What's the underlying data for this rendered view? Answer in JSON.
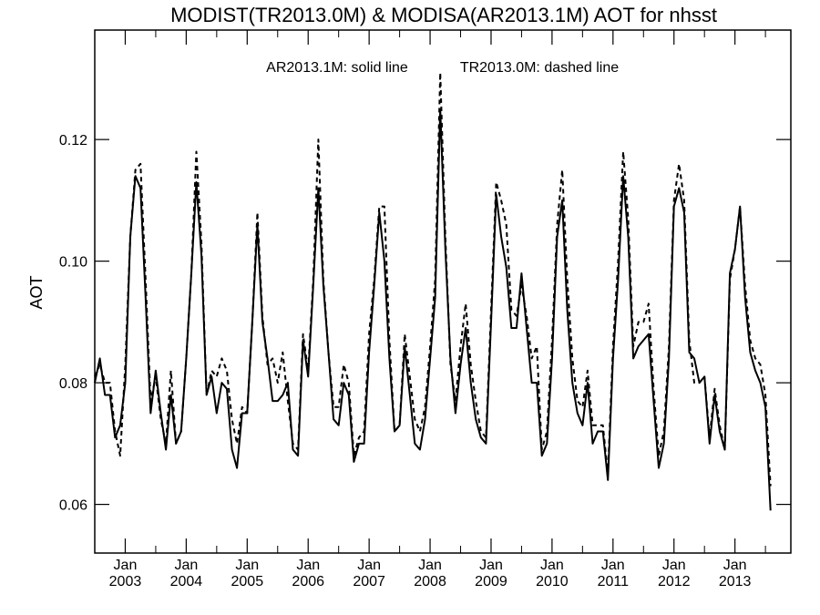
{
  "chart_data": {
    "type": "line",
    "title": "MODIST(TR2013.0M) & MODISA(AR2013.1M)  AOT for nhsst",
    "annotation_left": "AR2013.1M: solid line",
    "annotation_right": "TR2013.0M: dashed line",
    "ylabel": "AOT",
    "xlabel": "",
    "ylim": [
      0.052,
      0.138
    ],
    "xlim": [
      "2002-07",
      "2013-12"
    ],
    "y_ticks": [
      "0.06",
      "0.08",
      "0.10",
      "0.12"
    ],
    "x_ticks": [
      {
        "month": "Jan",
        "year": "2003",
        "at": "2003-01"
      },
      {
        "month": "Jan",
        "year": "2004",
        "at": "2004-01"
      },
      {
        "month": "Jan",
        "year": "2005",
        "at": "2005-01"
      },
      {
        "month": "Jan",
        "year": "2006",
        "at": "2006-01"
      },
      {
        "month": "Jan",
        "year": "2007",
        "at": "2007-01"
      },
      {
        "month": "Jan",
        "year": "2008",
        "at": "2008-01"
      },
      {
        "month": "Jan",
        "year": "2009",
        "at": "2009-01"
      },
      {
        "month": "Jan",
        "year": "2010",
        "at": "2010-01"
      },
      {
        "month": "Jan",
        "year": "2011",
        "at": "2011-01"
      },
      {
        "month": "Jan",
        "year": "2012",
        "at": "2012-01"
      },
      {
        "month": "Jan",
        "year": "2013",
        "at": "2013-01"
      }
    ],
    "x_start": "2002-07",
    "grid": false,
    "series": [
      {
        "name": "AR2013.1M",
        "style": "solid",
        "color": "#000000",
        "values": [
          0.08,
          0.084,
          0.078,
          0.078,
          0.071,
          0.073,
          0.08,
          0.104,
          0.114,
          0.112,
          0.094,
          0.075,
          0.082,
          0.075,
          0.069,
          0.078,
          0.07,
          0.072,
          0.084,
          0.098,
          0.113,
          0.101,
          0.078,
          0.081,
          0.075,
          0.08,
          0.079,
          0.069,
          0.066,
          0.075,
          0.075,
          0.09,
          0.106,
          0.09,
          0.084,
          0.077,
          0.077,
          0.078,
          0.08,
          0.069,
          0.068,
          0.087,
          0.081,
          0.096,
          0.112,
          0.096,
          0.085,
          0.074,
          0.073,
          0.08,
          0.078,
          0.067,
          0.07,
          0.07,
          0.085,
          0.096,
          0.108,
          0.1,
          0.084,
          0.072,
          0.073,
          0.086,
          0.078,
          0.07,
          0.069,
          0.074,
          0.084,
          0.094,
          0.125,
          0.102,
          0.084,
          0.075,
          0.083,
          0.089,
          0.08,
          0.074,
          0.071,
          0.07,
          0.09,
          0.111,
          0.104,
          0.099,
          0.089,
          0.089,
          0.098,
          0.089,
          0.08,
          0.08,
          0.068,
          0.07,
          0.084,
          0.104,
          0.11,
          0.092,
          0.08,
          0.075,
          0.073,
          0.08,
          0.07,
          0.072,
          0.072,
          0.064,
          0.084,
          0.097,
          0.114,
          0.104,
          0.084,
          0.086,
          0.087,
          0.088,
          0.077,
          0.066,
          0.07,
          0.084,
          0.109,
          0.112,
          0.108,
          0.085,
          0.084,
          0.08,
          0.081,
          0.07,
          0.078,
          0.072,
          0.069,
          0.098,
          0.102,
          0.109,
          0.094,
          0.085,
          0.082,
          0.08,
          0.076,
          0.059
        ]
      },
      {
        "name": "TR2013.0M",
        "style": "dashed",
        "color": "#000000",
        "values": [
          0.081,
          0.083,
          0.08,
          0.08,
          0.072,
          0.068,
          0.083,
          0.104,
          0.115,
          0.116,
          0.097,
          0.077,
          0.081,
          0.074,
          0.07,
          0.082,
          0.07,
          0.072,
          0.084,
          0.098,
          0.118,
          0.103,
          0.078,
          0.082,
          0.081,
          0.084,
          0.082,
          0.074,
          0.07,
          0.076,
          0.075,
          0.09,
          0.108,
          0.091,
          0.083,
          0.084,
          0.08,
          0.085,
          0.077,
          0.07,
          0.069,
          0.088,
          0.082,
          0.097,
          0.12,
          0.097,
          0.085,
          0.076,
          0.076,
          0.083,
          0.08,
          0.068,
          0.071,
          0.072,
          0.088,
          0.097,
          0.109,
          0.109,
          0.087,
          0.072,
          0.073,
          0.088,
          0.081,
          0.074,
          0.072,
          0.076,
          0.086,
          0.097,
          0.131,
          0.104,
          0.083,
          0.077,
          0.086,
          0.093,
          0.083,
          0.077,
          0.072,
          0.071,
          0.092,
          0.113,
          0.11,
          0.106,
          0.092,
          0.091,
          0.096,
          0.091,
          0.084,
          0.086,
          0.069,
          0.072,
          0.087,
          0.106,
          0.115,
          0.097,
          0.084,
          0.077,
          0.076,
          0.082,
          0.073,
          0.073,
          0.073,
          0.065,
          0.086,
          0.1,
          0.118,
          0.107,
          0.086,
          0.09,
          0.09,
          0.093,
          0.079,
          0.068,
          0.072,
          0.086,
          0.11,
          0.116,
          0.11,
          0.087,
          0.08,
          0.08,
          0.081,
          0.071,
          0.079,
          0.073,
          0.069,
          0.097,
          0.102,
          0.109,
          0.096,
          0.087,
          0.084,
          0.083,
          0.078,
          0.063
        ]
      }
    ]
  }
}
